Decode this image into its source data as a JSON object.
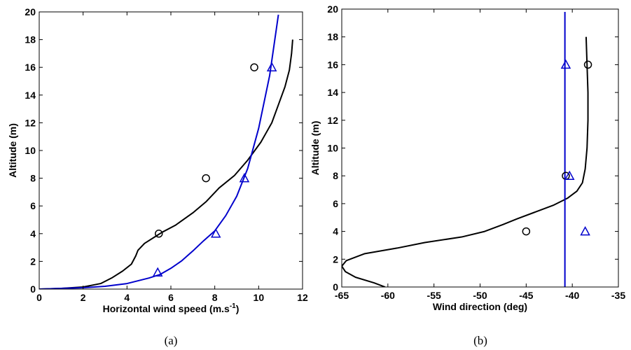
{
  "chart_data": [
    {
      "type": "line",
      "panel": "(a)",
      "xlabel": "Horizontal wind speed (m.s",
      "xlabel_sup": "-1",
      "xlabel_end": ")",
      "ylabel": "Altitude (m)",
      "xlim": [
        0,
        12
      ],
      "ylim": [
        0,
        20
      ],
      "xticks": [
        0,
        2,
        4,
        6,
        8,
        10,
        12
      ],
      "yticks": [
        0,
        2,
        4,
        6,
        8,
        10,
        12,
        14,
        16,
        18,
        20
      ],
      "grid": false,
      "series": [
        {
          "color": "#000000",
          "style": "line",
          "x": [
            0,
            1,
            2,
            2.8,
            3.3,
            3.8,
            4.2,
            4.4,
            4.5,
            4.8,
            5.3,
            5.6,
            6.2,
            7,
            7.6,
            8.2,
            8.9,
            9.5,
            10.1,
            10.6,
            10.9,
            11.2,
            11.4,
            11.5,
            11.55
          ],
          "y": [
            0,
            0.05,
            0.15,
            0.4,
            0.8,
            1.3,
            1.8,
            2.4,
            2.8,
            3.3,
            3.8,
            4.1,
            4.6,
            5.5,
            6.3,
            7.3,
            8.2,
            9.3,
            10.6,
            12,
            13.3,
            14.6,
            15.8,
            17,
            18
          ]
        },
        {
          "color": "#0000cc",
          "style": "line",
          "x": [
            0,
            2,
            3,
            4,
            5,
            5.5,
            6,
            6.5,
            7,
            7.5,
            8,
            8.5,
            9,
            9.5,
            10,
            10.5,
            10.9
          ],
          "y": [
            0,
            0.1,
            0.2,
            0.4,
            0.8,
            1.05,
            1.5,
            2.05,
            2.75,
            3.5,
            4.2,
            5.3,
            6.7,
            8.7,
            11.6,
            15.4,
            19.8
          ]
        },
        {
          "color": "#000000",
          "style": "circle",
          "x": [
            5.45,
            7.6,
            9.8
          ],
          "y": [
            4,
            8,
            16
          ]
        },
        {
          "color": "#0000cc",
          "style": "triangle",
          "x": [
            5.4,
            8.05,
            9.35,
            10.6
          ],
          "y": [
            1.2,
            4,
            8,
            16
          ]
        }
      ]
    },
    {
      "type": "line",
      "panel": "(b)",
      "xlabel": "Wind direction (deg)",
      "ylabel": "Altitude (m)",
      "xlim": [
        -65,
        -35
      ],
      "ylim": [
        0,
        20
      ],
      "xticks": [
        -65,
        -60,
        -55,
        -50,
        -45,
        -40,
        -35
      ],
      "yticks": [
        0,
        2,
        4,
        6,
        8,
        10,
        12,
        14,
        16,
        18,
        20
      ],
      "grid": false,
      "series": [
        {
          "color": "#000000",
          "style": "line",
          "x": [
            -60.3,
            -61.5,
            -63.5,
            -64.6,
            -65,
            -64.5,
            -62.5,
            -59,
            -56,
            -52,
            -49.5,
            -47.5,
            -46,
            -44,
            -42,
            -40.5,
            -39.5,
            -38.9,
            -38.6,
            -38.4,
            -38.3,
            -38.3,
            -38.4,
            -38.5
          ],
          "y": [
            0,
            0.3,
            0.7,
            1.1,
            1.5,
            1.9,
            2.4,
            2.8,
            3.2,
            3.6,
            4,
            4.5,
            4.9,
            5.4,
            5.9,
            6.4,
            6.9,
            7.5,
            8.5,
            10,
            12,
            14,
            16,
            18
          ]
        },
        {
          "color": "#0000cc",
          "style": "line",
          "x": [
            -40.8,
            -40.8
          ],
          "y": [
            0,
            19.8
          ]
        },
        {
          "color": "#000000",
          "style": "circle",
          "x": [
            -45,
            -40.7,
            -38.3
          ],
          "y": [
            4,
            8,
            16
          ]
        },
        {
          "color": "#0000cc",
          "style": "triangle",
          "x": [
            -38.6,
            -40.3,
            -40.7
          ],
          "y": [
            4,
            8,
            16
          ]
        }
      ]
    }
  ]
}
